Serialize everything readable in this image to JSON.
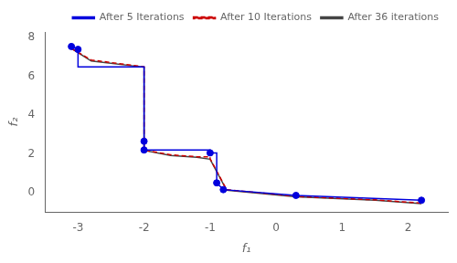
{
  "chart_data": {
    "type": "line",
    "xlabel": "f₁",
    "ylabel": "f₂",
    "xlim": [
      -3.5,
      2.6
    ],
    "ylim": [
      -1.0,
      8.3
    ],
    "xticks": [
      -3,
      -2,
      -1,
      0,
      1,
      2
    ],
    "yticks": [
      0,
      2,
      4,
      6,
      8
    ],
    "grid": false,
    "legend": "upper right",
    "series": [
      {
        "name": "After 5 Iterations",
        "color": "#0000dd",
        "line_style": "solid",
        "marker": "none",
        "x": [
          -3.1,
          -3.0,
          -3.0,
          -2.0,
          -2.0,
          -2.0,
          -1.0,
          -1.0,
          -0.9,
          -0.9,
          -0.8,
          0.3,
          2.2
        ],
        "values": [
          7.55,
          7.4,
          6.5,
          6.5,
          2.65,
          2.2,
          2.2,
          2.05,
          2.05,
          0.5,
          0.15,
          -0.15,
          -0.4
        ]
      },
      {
        "type": "scatter",
        "color": "#0000dd",
        "marker": "circle",
        "x": [
          -3.1,
          -3.0,
          -2.0,
          -2.0,
          -1.0,
          -0.9,
          -0.8,
          0.3,
          2.2
        ],
        "values": [
          7.55,
          7.4,
          2.65,
          2.2,
          2.05,
          0.5,
          0.15,
          -0.15,
          -0.4
        ]
      },
      {
        "name": "After 10 Iterations",
        "color": "#cc0000",
        "line_style": "dashed",
        "marker": "none",
        "x": [
          -3.1,
          -2.8,
          -2.0,
          -2.0,
          -1.6,
          -1.2,
          -1.0,
          -1.0,
          -0.75,
          0.3,
          1.5,
          2.2
        ],
        "values": [
          7.45,
          6.85,
          6.5,
          2.2,
          1.95,
          1.85,
          1.85,
          1.75,
          0.15,
          -0.2,
          -0.38,
          -0.55
        ]
      },
      {
        "name": "After 36 iterations",
        "color": "#444444",
        "line_style": "solid",
        "marker": "none",
        "x": [
          -3.1,
          -2.8,
          -2.0,
          -2.0,
          -1.6,
          -1.2,
          -1.0,
          -0.75,
          0.3,
          1.5,
          2.2
        ],
        "values": [
          7.45,
          6.8,
          6.48,
          2.18,
          1.92,
          1.82,
          1.72,
          0.12,
          -0.22,
          -0.4,
          -0.57
        ]
      }
    ]
  }
}
